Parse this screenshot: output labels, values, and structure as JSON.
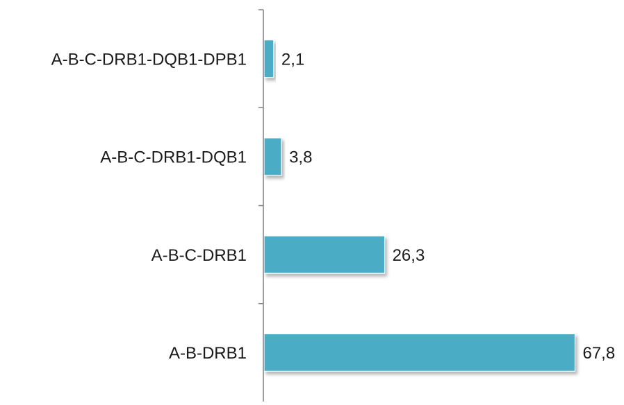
{
  "chart_data": {
    "type": "bar",
    "orientation": "horizontal",
    "categories": [
      "A-B-C-DRB1-DQB1-DPB1",
      "A-B-C-DRB1-DQB1",
      "A-B-C-DRB1",
      "A-B-DRB1"
    ],
    "values": [
      2.1,
      3.8,
      26.3,
      67.8
    ],
    "value_labels": [
      "2,1",
      "3,8",
      "26,3",
      "67,8"
    ],
    "title": "",
    "xlabel": "",
    "ylabel": "",
    "xlim": [
      0,
      70
    ],
    "grid": false,
    "legend": "none",
    "bar_color": "#4BACC6",
    "bar_shadow_color": "#9a9a9a",
    "axis_color": "#7f7f7f",
    "text_color": "#1a1a1a"
  }
}
